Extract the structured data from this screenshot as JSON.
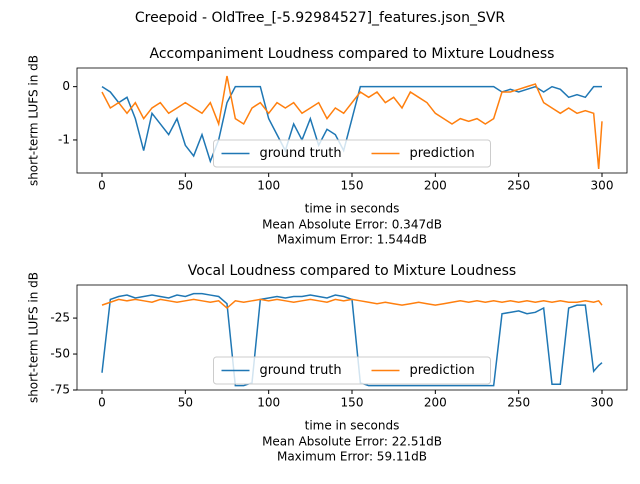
{
  "title": "Creepoid - OldTree_[-5.92984527]_features.json_SVR",
  "chart_data": [
    {
      "type": "line",
      "title": "Accompaniment Loudness compared to Mixture Loudness",
      "x_label": "time in seconds",
      "y_label": "short-term LUFS in dB",
      "annotations": [
        "Mean Absolute Error: 0.347dB",
        "Maximum Error: 1.544dB"
      ],
      "legend": "lower center",
      "x": [
        0,
        5,
        10,
        15,
        20,
        25,
        30,
        35,
        40,
        45,
        50,
        55,
        60,
        65,
        70,
        75,
        80,
        85,
        90,
        95,
        100,
        105,
        110,
        115,
        120,
        125,
        130,
        135,
        140,
        145,
        150,
        155,
        160,
        165,
        170,
        175,
        180,
        185,
        190,
        195,
        200,
        205,
        210,
        215,
        220,
        225,
        230,
        235,
        240,
        245,
        250,
        255,
        260,
        265,
        270,
        275,
        280,
        285,
        290,
        295,
        298,
        300
      ],
      "series": [
        {
          "name": "ground truth",
          "color": "#1f77b4",
          "values": [
            0,
            -0.1,
            -0.3,
            -0.2,
            -0.6,
            -1.2,
            -0.5,
            -0.7,
            -0.9,
            -0.6,
            -1.1,
            -1.3,
            -0.9,
            -1.4,
            -1.0,
            -0.3,
            0,
            0,
            0,
            0,
            -0.6,
            -0.9,
            -1.2,
            -0.7,
            -1.0,
            -0.6,
            -1.1,
            -0.8,
            -0.9,
            -1.2,
            -0.6,
            0,
            0,
            0,
            0,
            0,
            0,
            0,
            0,
            0,
            0,
            0,
            0,
            0,
            0,
            0,
            0,
            0,
            -0.1,
            -0.05,
            -0.1,
            -0.05,
            0,
            -0.1,
            0,
            -0.05,
            -0.2,
            -0.15,
            -0.2,
            0,
            0,
            0
          ]
        },
        {
          "name": "prediction",
          "color": "#ff7f0e",
          "values": [
            -0.1,
            -0.4,
            -0.3,
            -0.5,
            -0.3,
            -0.6,
            -0.4,
            -0.3,
            -0.5,
            -0.4,
            -0.3,
            -0.4,
            -0.5,
            -0.3,
            -0.7,
            0.2,
            -0.6,
            -0.7,
            -0.4,
            -0.3,
            -0.5,
            -0.3,
            -0.4,
            -0.3,
            -0.5,
            -0.4,
            -0.3,
            -0.6,
            -0.4,
            -0.5,
            -0.3,
            -0.1,
            -0.2,
            -0.1,
            -0.3,
            -0.2,
            -0.4,
            -0.1,
            -0.2,
            -0.3,
            -0.5,
            -0.6,
            -0.7,
            -0.6,
            -0.65,
            -0.6,
            -0.7,
            -0.6,
            -0.1,
            -0.1,
            -0.05,
            0,
            0.05,
            -0.3,
            -0.4,
            -0.5,
            -0.4,
            -0.5,
            -0.45,
            -0.5,
            -1.544,
            -0.65
          ]
        }
      ],
      "xlim": [
        -15,
        315
      ],
      "xticks": [
        0,
        50,
        100,
        150,
        200,
        250,
        300
      ],
      "ylim": [
        -1.62,
        0.35
      ],
      "yticks": [
        0,
        -1
      ]
    },
    {
      "type": "line",
      "title": "Vocal Loudness compared to Mixture Loudness",
      "x_label": "time in seconds",
      "y_label": "short-term LUFS in dB",
      "annotations": [
        "Mean Absolute Error: 22.51dB",
        "Maximum Error: 59.11dB"
      ],
      "legend": "lower center",
      "x": [
        0,
        5,
        10,
        15,
        20,
        25,
        30,
        35,
        40,
        45,
        50,
        55,
        60,
        65,
        70,
        75,
        80,
        85,
        90,
        95,
        100,
        105,
        110,
        115,
        120,
        125,
        130,
        135,
        140,
        145,
        150,
        155,
        160,
        165,
        170,
        175,
        180,
        185,
        190,
        195,
        200,
        205,
        210,
        215,
        220,
        225,
        230,
        235,
        240,
        245,
        250,
        255,
        260,
        265,
        270,
        275,
        280,
        285,
        290,
        295,
        298,
        300
      ],
      "series": [
        {
          "name": "ground truth",
          "color": "#1f77b4",
          "values": [
            -63,
            -12,
            -10,
            -9,
            -11,
            -10,
            -9,
            -10,
            -11,
            -9,
            -10,
            -8,
            -8,
            -9,
            -10,
            -15,
            -72,
            -72,
            -70,
            -12,
            -11,
            -10,
            -11,
            -10,
            -10,
            -9,
            -10,
            -11,
            -9,
            -10,
            -12,
            -70,
            -72,
            -72,
            -72,
            -72,
            -72,
            -72,
            -72,
            -72,
            -72,
            -72,
            -72,
            -72,
            -72,
            -72,
            -72,
            -72,
            -22,
            -21,
            -20,
            -22,
            -21,
            -18,
            -71,
            -71,
            -18,
            -16,
            -16,
            -62,
            -58,
            -56
          ]
        },
        {
          "name": "prediction",
          "color": "#ff7f0e",
          "values": [
            -16,
            -14,
            -12,
            -13,
            -12,
            -13,
            -14,
            -12,
            -13,
            -14,
            -13,
            -12,
            -13,
            -14,
            -13,
            -18,
            -13,
            -14,
            -13,
            -12,
            -13,
            -12,
            -13,
            -14,
            -13,
            -12,
            -13,
            -14,
            -12,
            -13,
            -12,
            -13,
            -14,
            -15,
            -14,
            -15,
            -16,
            -15,
            -14,
            -15,
            -16,
            -15,
            -14,
            -13,
            -14,
            -13,
            -14,
            -13,
            -14,
            -13,
            -14,
            -13,
            -14,
            -13,
            -14,
            -13,
            -14,
            -14,
            -13,
            -14,
            -13,
            -16
          ]
        }
      ],
      "xlim": [
        -15,
        315
      ],
      "xticks": [
        0,
        50,
        100,
        150,
        200,
        250,
        300
      ],
      "ylim": [
        -75,
        -2
      ],
      "yticks": [
        -25,
        -50,
        -75
      ]
    }
  ]
}
